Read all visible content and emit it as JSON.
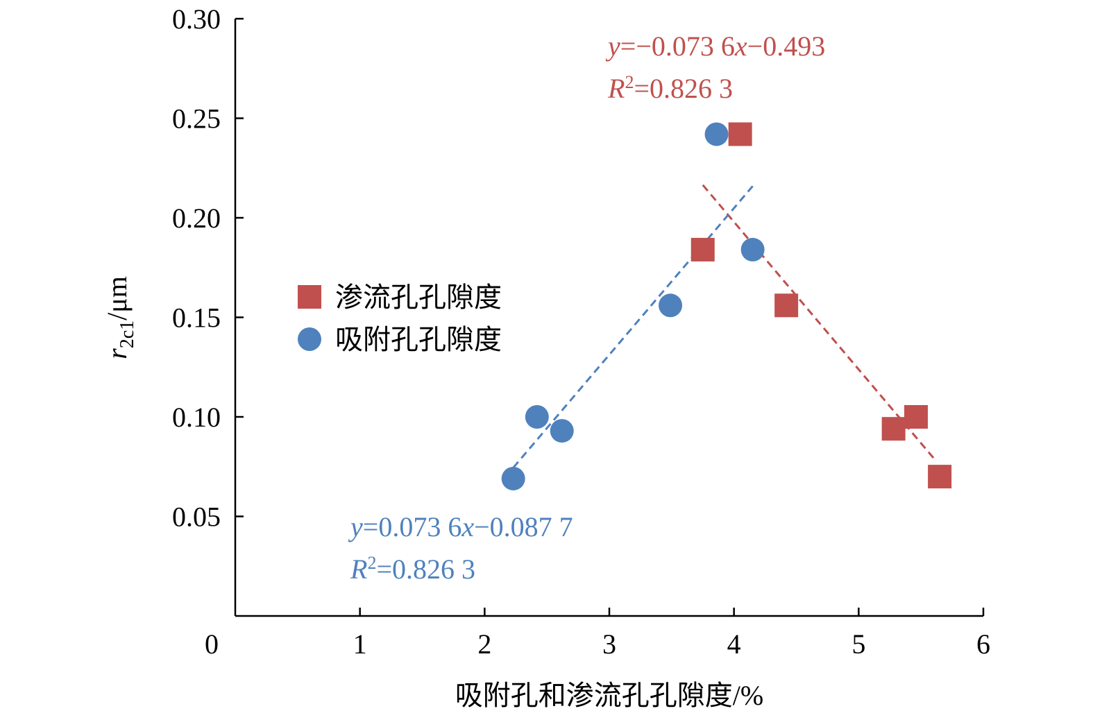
{
  "chart_data": {
    "type": "scatter",
    "xlabel": "吸附孔和渗流孔孔隙度/%",
    "ylabel": {
      "main": "r",
      "sub": "2c1",
      "unit": "/μm"
    },
    "xlim": [
      0,
      6
    ],
    "ylim": [
      0,
      0.3
    ],
    "x_ticks": [
      "0",
      "1",
      "2",
      "3",
      "4",
      "5",
      "6"
    ],
    "y_ticks": [
      "0.05",
      "0.10",
      "0.15",
      "0.20",
      "0.25",
      "0.30"
    ],
    "y_tick_values": [
      0.05,
      0.1,
      0.15,
      0.2,
      0.25,
      0.3
    ],
    "grid": false,
    "legend_position": "left-middle",
    "series": [
      {
        "name": "渗流孔孔隙度",
        "marker": "square",
        "color": "#c0504d",
        "points": [
          [
            3.75,
            0.184
          ],
          [
            4.05,
            0.242
          ],
          [
            4.42,
            0.156
          ],
          [
            5.28,
            0.094
          ],
          [
            5.46,
            0.1
          ],
          [
            5.65,
            0.07
          ]
        ],
        "trend": {
          "x": [
            3.75,
            5.62
          ]
        },
        "equation": {
          "y": "y",
          "rest": "=−0.073 6",
          "x": "x",
          "tail": "−0.493"
        },
        "r2": {
          "R": "R",
          "sup": "2",
          "rest": "=0.826 3"
        }
      },
      {
        "name": "吸附孔孔隙度",
        "marker": "circle",
        "color": "#4f81bd",
        "points": [
          [
            2.23,
            0.069
          ],
          [
            2.42,
            0.1
          ],
          [
            2.62,
            0.093
          ],
          [
            3.49,
            0.156
          ],
          [
            3.86,
            0.242
          ],
          [
            4.15,
            0.184
          ]
        ],
        "trend": {
          "x": [
            2.23,
            4.15
          ]
        },
        "equation": {
          "y": "y",
          "rest": "=0.073 6",
          "x": "x",
          "tail": "−0.087 7"
        },
        "r2": {
          "R": "R",
          "sup": "2",
          "rest": "=0.826 3"
        }
      }
    ]
  }
}
